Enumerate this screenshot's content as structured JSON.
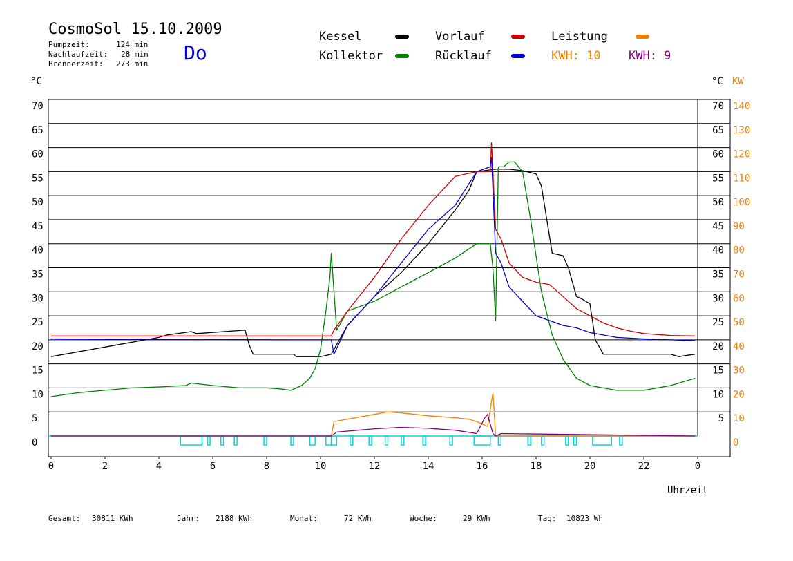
{
  "header": {
    "title": "CosmoSol 15.10.2009",
    "day": "Do",
    "stats": [
      {
        "label": "Pumpzeit:",
        "value": "124 min"
      },
      {
        "label": "Nachlaufzeit:",
        "value": "28 min"
      },
      {
        "label": "Brennerzeit:",
        "value": "273 min"
      }
    ]
  },
  "legend": {
    "kessel": "Kessel",
    "kollektor": "Kollektor",
    "vorlauf": "Vorlauf",
    "ruecklauf": "Rücklauf",
    "leistung": "Leistung",
    "kwh_orange": "KWH: 10",
    "kwh_purple": "KWH: 9"
  },
  "axes": {
    "left_unit": "°C",
    "right_unit_c": "°C",
    "right_unit_kw": "KW",
    "xlabel": "Uhrzeit"
  },
  "footer": [
    {
      "label": "Gesamt:",
      "value": "30811 KWh"
    },
    {
      "label": "Jahr:",
      "value": "2188 KWh"
    },
    {
      "label": "Monat:",
      "value": "72 KWh"
    },
    {
      "label": "Woche:",
      "value": "29 KWh"
    },
    {
      "label": "Tag:",
      "value": "10823 Wh"
    }
  ],
  "colors": {
    "kessel": "#000000",
    "kollektor": "#008000",
    "vorlauf": "#d00000",
    "ruecklauf": "#0000d0",
    "leistung": "#f08000",
    "kwh_purple": "#800080",
    "pump": "#00d8d8",
    "grid": "#000000"
  },
  "chart_data": {
    "type": "line",
    "xlim": [
      0,
      24
    ],
    "ylim": [
      0,
      70
    ],
    "ylim_right_kw": [
      0,
      140
    ],
    "x_ticks": [
      "0",
      "2",
      "4",
      "6",
      "8",
      "10",
      "12",
      "14",
      "16",
      "18",
      "20",
      "22",
      "0"
    ],
    "y_ticks_left": [
      "0",
      "5",
      "10",
      "15",
      "20",
      "25",
      "30",
      "35",
      "40",
      "45",
      "50",
      "55",
      "60",
      "65",
      "70"
    ],
    "y_ticks_right": [
      "5",
      "10",
      "15",
      "20",
      "25",
      "30",
      "35",
      "40",
      "45",
      "50",
      "55",
      "60",
      "65",
      "70"
    ],
    "y_ticks_kw": [
      "0",
      "10",
      "20",
      "30",
      "40",
      "50",
      "60",
      "70",
      "80",
      "90",
      "100",
      "110",
      "120",
      "130",
      "140"
    ],
    "series": [
      {
        "name": "Kessel",
        "color": "#000000",
        "x": [
          0,
          2,
          4,
          4.3,
          5.2,
          5.4,
          7.2,
          7.35,
          7.5,
          9,
          9.1,
          10,
          10.4,
          11,
          12,
          13,
          14,
          15,
          15.5,
          15.8,
          16.5,
          17,
          17.5,
          18,
          18.2,
          18.4,
          18.6,
          19,
          19.2,
          19.5,
          19.7,
          20,
          20.2,
          20.5,
          23,
          23.3,
          23.9
        ],
        "y": [
          16.5,
          18.5,
          20.5,
          21,
          21.7,
          21.3,
          22,
          19,
          17,
          17,
          16.5,
          16.5,
          17,
          23,
          29,
          34,
          40,
          47,
          51,
          55,
          55.5,
          55.5,
          55.2,
          54.5,
          52,
          45,
          38,
          37.5,
          35,
          29,
          28.5,
          27.5,
          20,
          17,
          17,
          16.5,
          17
        ]
      },
      {
        "name": "Kollektor",
        "color": "#008000",
        "x": [
          0,
          1,
          2,
          3,
          4,
          5,
          5.2,
          6,
          7,
          8,
          8.5,
          8.9,
          9.3,
          9.6,
          9.8,
          10,
          10.2,
          10.35,
          10.4,
          10.6,
          11,
          12,
          13,
          14,
          15,
          15.8,
          16.3,
          16.4,
          16.5,
          16.6,
          16.8,
          17,
          17.2,
          17.5,
          17.8,
          18.2,
          18.6,
          19,
          19.5,
          20,
          21,
          22,
          23,
          23.9
        ],
        "y": [
          8.2,
          9,
          9.5,
          10,
          10.2,
          10.5,
          11,
          10.5,
          10,
          10,
          9.8,
          9.5,
          10.5,
          12,
          14,
          18,
          26,
          33,
          38,
          22,
          26,
          28,
          31,
          34,
          37,
          40,
          40,
          35,
          24,
          56,
          56,
          57,
          57,
          55,
          45,
          30,
          21,
          16,
          12,
          10.5,
          9.5,
          9.5,
          10.5,
          12
        ]
      },
      {
        "name": "Vorlauf",
        "color": "#d00000",
        "x": [
          0,
          10.4,
          10.5,
          11,
          12,
          13,
          14,
          15,
          15.8,
          16.3,
          16.35,
          16.5,
          16.7,
          17,
          17.5,
          18,
          18.5,
          19,
          19.5,
          20,
          20.5,
          21,
          21.5,
          22,
          23,
          23.9
        ],
        "y": [
          20.8,
          20.8,
          22,
          26,
          33,
          41,
          48,
          54,
          55,
          55,
          61,
          43,
          41,
          36,
          33,
          32,
          31.5,
          29,
          26.5,
          25,
          23.5,
          22.5,
          21.8,
          21.3,
          20.9,
          20.8
        ]
      },
      {
        "name": "Rücklauf",
        "color": "#0000d0",
        "x": [
          0,
          9,
          10.4,
          10.5,
          11,
          12,
          13,
          14,
          15,
          15.8,
          16.3,
          16.35,
          16.5,
          16.7,
          17,
          17.5,
          18,
          18.5,
          19,
          19.5,
          20,
          21,
          22,
          23,
          23.9
        ],
        "y": [
          20.2,
          20,
          20,
          17,
          23,
          29,
          36,
          43,
          48,
          55,
          56,
          58,
          38,
          36,
          31,
          28,
          25,
          24,
          23,
          22.5,
          21.5,
          20.5,
          20.2,
          20,
          19.8
        ]
      },
      {
        "name": "Leistung",
        "color": "#f08000",
        "x": [
          0,
          10.4,
          10.5,
          11,
          11.5,
          12,
          12.5,
          13,
          13.5,
          14,
          14.5,
          15,
          15.5,
          15.8,
          16.2,
          16.4,
          16.5,
          23.9
        ],
        "y": [
          0,
          0,
          3,
          3.5,
          4,
          4.5,
          5,
          4.8,
          4.5,
          4.2,
          4,
          3.8,
          3.5,
          3,
          2,
          9,
          0,
          0
        ]
      },
      {
        "name": "KWH",
        "color": "#800080",
        "x": [
          0,
          10.4,
          10.6,
          11,
          12,
          13,
          14,
          15,
          15.8,
          16.1,
          16.2,
          16.4,
          16.5,
          16.7,
          23.9
        ],
        "y": [
          0,
          0,
          0.8,
          1,
          1.5,
          1.8,
          1.6,
          1.2,
          0.5,
          3.8,
          4.5,
          0.5,
          0,
          0.5,
          0
        ]
      }
    ],
    "pump_intervals": [
      [
        4.8,
        5.6
      ],
      [
        5.8,
        5.9
      ],
      [
        6.3,
        6.4
      ],
      [
        6.8,
        6.9
      ],
      [
        7.9,
        8.0
      ],
      [
        8.9,
        9.0
      ],
      [
        9.6,
        9.8
      ],
      [
        10.2,
        10.4
      ],
      [
        10.4,
        10.6
      ],
      [
        11.1,
        11.2
      ],
      [
        11.8,
        11.9
      ],
      [
        12.4,
        12.5
      ],
      [
        13.0,
        13.1
      ],
      [
        13.8,
        13.9
      ],
      [
        14.8,
        14.9
      ],
      [
        15.7,
        16.3
      ],
      [
        16.6,
        16.7
      ],
      [
        17.7,
        17.8
      ],
      [
        18.2,
        18.3
      ],
      [
        19.1,
        19.2
      ],
      [
        19.4,
        19.5
      ],
      [
        20.1,
        20.8
      ],
      [
        21.1,
        21.2
      ]
    ]
  }
}
